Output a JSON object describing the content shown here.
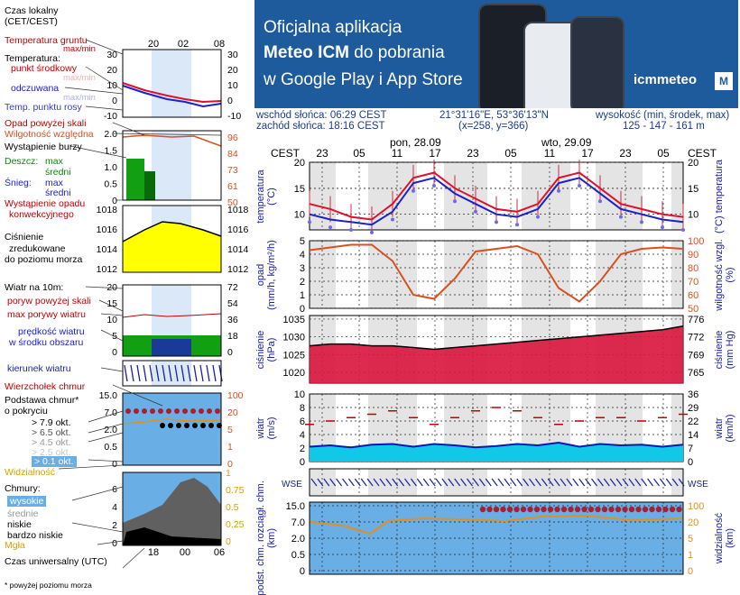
{
  "legend": {
    "time_local": "Czas lokalny\n(CET/CEST)",
    "time_local_l1": "Czas lokalny",
    "time_local_l2": "(CET/CEST)",
    "hours_top": [
      "20",
      "02",
      "08"
    ],
    "soil_temp": "Temperatura gruntu",
    "soil_temp_sub": "max/min",
    "temperature": "Temperatura:",
    "mid_point": "punkt środkowy",
    "max_min1": "max/min",
    "feels_like": "odczuwana",
    "max_min2": "max/min",
    "dew_point": "Temp. punktu rosy",
    "precip_above": "Opad powyżej skali",
    "humidity": "Wilgotność względna",
    "storm": "Wystąpienie burzy",
    "rain": "Deszcz:",
    "rain_max": "max",
    "rain_mean": "średni",
    "snow": "Śnieg:",
    "snow_max": "max",
    "snow_mean": "średni",
    "conv": "Wystąpienie opadu",
    "conv2": "konwekcyjnego",
    "pressure_l1": "Ciśnienie",
    "pressure_l2": "zredukowane",
    "pressure_l3": "do poziomu morza",
    "wind_at": "Wiatr na 10m:",
    "gust_above": "poryw powyżej skali",
    "gust_max": "max porywy wiatru",
    "wind_speed": "prędkość wiatru",
    "wind_area": "w środku obszaru",
    "wind_dir": "kierunek wiatru",
    "cloud_top": "Wierzchołek chmur",
    "cloud_base": "Podstawa chmur*",
    "cloud_base2": "o pokryciu",
    "c79": "> 7.9 okt.",
    "c65": "> 6.5 okt.",
    "c45": "> 4.5 okt.",
    "c25": "> 2.5 okt.",
    "c01": "> 0.1 okt.",
    "visibility": "Widzialność",
    "clouds": "Chmury:",
    "high": "wysokie",
    "mid": "średnie",
    "low": "niskie",
    "very_low": "bardzo niskie",
    "fog": "Mgła",
    "utc": "Czas uniwersalny (UTC)",
    "note": "* powyżej poziomu morza",
    "hours_bottom": [
      "18",
      "00",
      "06"
    ],
    "temp_ticks": [
      "30",
      "20",
      "10",
      "0",
      "-10"
    ],
    "rain_ticks": [
      "2.0",
      "1.5",
      "1.0",
      "0.5",
      "0"
    ],
    "hum_ticks": [
      "96",
      "84",
      "73",
      "61",
      "50"
    ],
    "press_ticks": [
      "1018",
      "1016",
      "1014",
      "1012"
    ],
    "wind_ticks": [
      "20",
      "15",
      "10",
      "5",
      "0"
    ],
    "wind_kmh_ticks": [
      "72",
      "54",
      "36",
      "18",
      "0"
    ],
    "cloud_ticks": [
      "15.0",
      "7.0",
      "2.0",
      "0.5",
      "0"
    ],
    "vis_ticks": [
      "100",
      "20",
      "5",
      "1",
      "0"
    ],
    "cl_ticks": [
      "6",
      "4",
      "2",
      "0"
    ],
    "cl_right": [
      "1",
      "0.75",
      "0.5",
      "0.25",
      "0"
    ]
  },
  "banner": {
    "line1": "Oficjalna aplikacja",
    "line2a": "Meteo ICM",
    "line2b": " do pobrania",
    "line3": "w Google Play i App Store",
    "logo": "icmmeteo",
    "mbox": "M"
  },
  "info": {
    "sunrise": "wschód słońca: 06:29 CEST",
    "sunset": "zachód słońca: 18:16 CEST",
    "coords": "21°31'16\"E, 53°36'13\"N",
    "grid": "(x=258, y=366)",
    "altitude_label": "wysokość (min, środek, max)",
    "altitude": "125 - 147 - 161 m"
  },
  "main": {
    "tz": "CEST",
    "day1": "pon, 28.09",
    "day2": "wto, 29.09",
    "hours": [
      "23",
      "05",
      "11",
      "17",
      "23",
      "05",
      "11",
      "17",
      "23",
      "05"
    ],
    "panels": {
      "temp": {
        "left": "temperatura\n(°C)",
        "right": "(°C)  temperatura",
        "ticks": [
          "20",
          "15",
          "10"
        ]
      },
      "precip": {
        "left": "opad\n(mm/h, kg/m²/h)",
        "right": "wilgotność wzgl.\n(%)",
        "ticks_left": [
          "5",
          "4",
          "3",
          "2",
          "1",
          "0"
        ],
        "ticks_right": [
          "100",
          "90",
          "80",
          "70",
          "60",
          "50"
        ]
      },
      "press": {
        "left": "ciśnienie\n(hPa)",
        "right": "ciśnienie\n(mm Hg)",
        "ticks_left": [
          "1035",
          "1030",
          "1025",
          "1020"
        ],
        "ticks_right": [
          "776",
          "772",
          "769",
          "765"
        ]
      },
      "wind": {
        "left": "wiatr\n(m/s)",
        "right": "wiatr\n(km/h)",
        "ticks_left": [
          "10",
          "8",
          "6",
          "4",
          "2",
          "0"
        ],
        "ticks_right": [
          "36",
          "29",
          "22",
          "14",
          "7",
          "0"
        ]
      },
      "cloud": {
        "left": "podst. chm. rozciągł. chm.\n(km)",
        "right": "widzialność\n(km)",
        "ticks_left": [
          "15.0",
          "7.0",
          "2.0",
          "0.5",
          "0"
        ],
        "ticks_right": [
          "100",
          "20",
          "5",
          "1",
          "0"
        ]
      }
    }
  },
  "colors": {
    "temp_line": "#e0102a",
    "feels_line": "#1a22c8",
    "dew": "#6a6af0",
    "humidity": "#d85020",
    "pressure_fill": "#d8143c",
    "wind_fill": "#12c8e8",
    "wind_line": "#0a1ab0",
    "gust": "#c00000",
    "day_band": "#e4e4e4",
    "night_band": "#ffffff",
    "cloud_bg": "#6aaee6",
    "vis_line": "#e09020",
    "banner": "#1e5b9c"
  },
  "chart_data": [
    {
      "type": "line",
      "title": "temperatura",
      "ylabel": "(°C)",
      "ylim": [
        7,
        20
      ],
      "series": [
        {
          "name": "temperatura",
          "values": [
            12,
            11,
            9.5,
            9,
            12,
            17,
            18,
            15,
            13,
            11,
            10.5,
            12,
            17,
            18,
            15,
            12,
            11,
            10,
            9.5
          ]
        },
        {
          "name": "odczuwana",
          "values": [
            10,
            9,
            8.5,
            8,
            10.5,
            16,
            17,
            14,
            12,
            10,
            9.5,
            11,
            16,
            17,
            14,
            11,
            10,
            9,
            8.5
          ]
        }
      ]
    },
    {
      "type": "line",
      "title": "opad / wilgotność wzgl.",
      "ylim": [
        50,
        100
      ],
      "series": [
        {
          "name": "wilgotność wzgl.",
          "values": [
            93,
            95,
            97,
            97,
            85,
            60,
            57,
            72,
            92,
            94,
            96,
            90,
            65,
            55,
            70,
            90,
            94,
            95,
            94
          ]
        }
      ]
    },
    {
      "type": "area",
      "title": "ciśnienie",
      "ylim": [
        1017,
        1036
      ],
      "series": [
        {
          "name": "ciśnienie",
          "values": [
            1027.5,
            1028,
            1028,
            1027.5,
            1027.5,
            1027,
            1026.5,
            1027,
            1027.5,
            1028,
            1028.5,
            1029,
            1029.5,
            1030,
            1030.5,
            1031,
            1031.5,
            1032,
            1033
          ]
        }
      ]
    },
    {
      "type": "area",
      "title": "wiatr",
      "ylim": [
        0,
        10
      ],
      "series": [
        {
          "name": "wiatr",
          "values": [
            2.2,
            2.4,
            2.1,
            2.5,
            2.6,
            2.2,
            2.6,
            2.4,
            2.1,
            2.3,
            2.6,
            2.4,
            2.8,
            2.2,
            2.6,
            2.4,
            2.5,
            2.2,
            2.5
          ]
        },
        {
          "name": "porywy",
          "values": [
            5.5,
            6,
            6.5,
            7,
            7.5,
            6.5,
            5.5,
            6.5,
            7.5,
            8,
            7.5,
            6.5,
            5.5,
            6,
            6.5,
            6.5,
            6,
            6.5,
            7
          ]
        }
      ]
    }
  ]
}
